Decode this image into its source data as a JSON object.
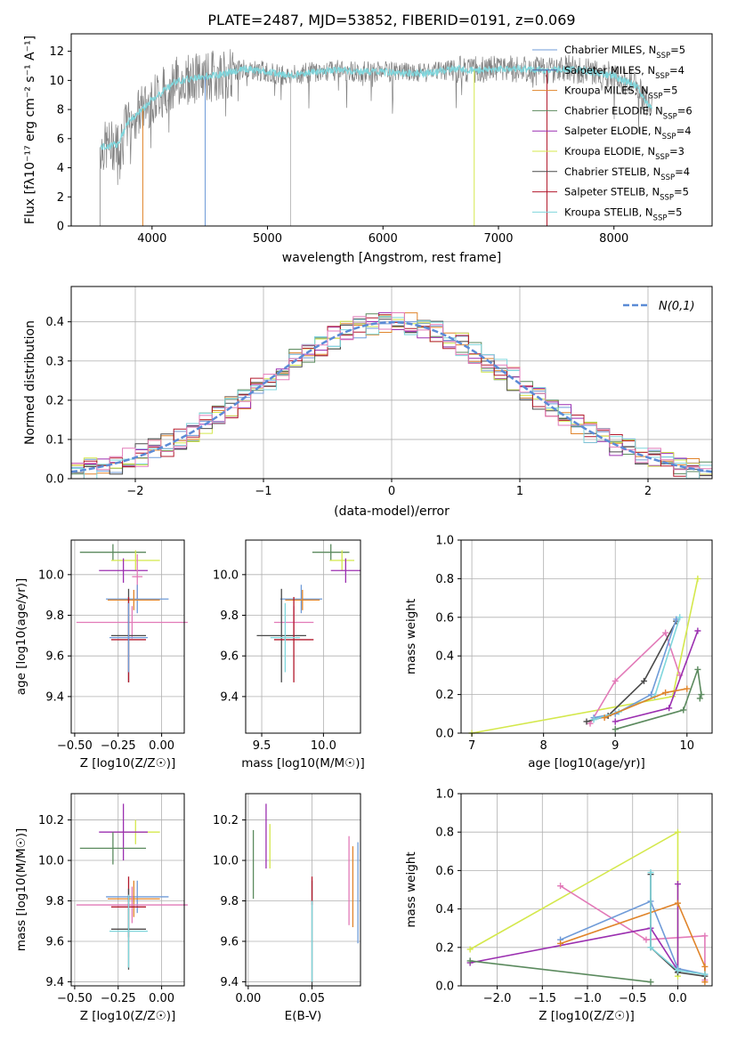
{
  "title": "PLATE=2487, MJD=53852, FIBERID=0191, z=0.069",
  "colors": {
    "chabrier_miles": "#6f9bd8",
    "salpeter_miles": "#4c5fa8",
    "kroupa_miles": "#e0842a",
    "chabrier_elodie": "#5b8a5e",
    "salpeter_elodie": "#9b2fb0",
    "kroupa_elodie": "#d4e84c",
    "chabrier_stelib": "#4a4a4a",
    "salpeter_stelib": "#b2182b",
    "kroupa_stelib": "#7fd6dc",
    "pink": "#e27ab8",
    "data_grey": "#808080",
    "normal_curve": "#5b8bd6"
  },
  "chart_data": [
    {
      "id": "spectrum",
      "type": "line",
      "xlabel": "wavelength [Angstrom, rest frame]",
      "ylabel": "Flux [fλ10⁻¹⁷ erg cm⁻² s⁻¹ A⁻¹]",
      "xlim": [
        3300,
        8850
      ],
      "ylim": [
        0,
        13.2
      ],
      "xticks": [
        4000,
        5000,
        6000,
        7000,
        8000
      ],
      "yticks": [
        0,
        2,
        4,
        6,
        8,
        10,
        12
      ],
      "legend_position": "top-right",
      "legend": [
        {
          "label": "Chabrier MILES, N",
          "sub": "SSP",
          "tail": "=5",
          "color": "#6f9bd8"
        },
        {
          "label": "Salpeter MILES, N",
          "sub": "SSP",
          "tail": "=4",
          "color": "#4c5fa8"
        },
        {
          "label": "Kroupa MILES, N",
          "sub": "SSP",
          "tail": "=5",
          "color": "#e0842a"
        },
        {
          "label": "Chabrier ELODIE, N",
          "sub": "SSP",
          "tail": "=6",
          "color": "#5b8a5e"
        },
        {
          "label": "Salpeter ELODIE, N",
          "sub": "SSP",
          "tail": "=4",
          "color": "#9b2fb0"
        },
        {
          "label": "Kroupa ELODIE, N",
          "sub": "SSP",
          "tail": "=3",
          "color": "#d4e84c"
        },
        {
          "label": "Chabrier STELIB, N",
          "sub": "SSP",
          "tail": "=4",
          "color": "#4a4a4a"
        },
        {
          "label": "Salpeter STELIB, N",
          "sub": "SSP",
          "tail": "=5",
          "color": "#b2182b"
        },
        {
          "label": "Kroupa STELIB, N",
          "sub": "SSP",
          "tail": "=5",
          "color": "#7fd6dc"
        }
      ],
      "continuum": [
        [
          3550,
          5.4
        ],
        [
          3700,
          5.6
        ],
        [
          3800,
          7.2
        ],
        [
          3900,
          7.9
        ],
        [
          4000,
          8.7
        ],
        [
          4200,
          9.9
        ],
        [
          4400,
          10.2
        ],
        [
          4600,
          10.4
        ],
        [
          4800,
          10.8
        ],
        [
          5000,
          10.6
        ],
        [
          5200,
          10.3
        ],
        [
          5400,
          10.6
        ],
        [
          5600,
          10.7
        ],
        [
          5800,
          10.6
        ],
        [
          6000,
          10.6
        ],
        [
          6200,
          10.5
        ],
        [
          6400,
          10.5
        ],
        [
          6600,
          10.8
        ],
        [
          6800,
          10.7
        ],
        [
          7000,
          10.8
        ],
        [
          7200,
          10.8
        ],
        [
          7400,
          10.7
        ],
        [
          7600,
          10.8
        ],
        [
          7800,
          10.6
        ],
        [
          8000,
          10.3
        ],
        [
          8200,
          9.6
        ],
        [
          8300,
          8.2
        ]
      ],
      "drops": [
        3550,
        3920,
        4460,
        5200,
        6790,
        7420
      ]
    },
    {
      "id": "residuals",
      "type": "histogram",
      "xlabel": "(data-model)/error",
      "ylabel": "Normed distribution",
      "xlim": [
        -2.5,
        2.5
      ],
      "ylim": [
        0,
        0.49
      ],
      "xticks": [
        -2,
        -1,
        0,
        1,
        2
      ],
      "xtick_labels": [
        "−2",
        "−1",
        "0",
        "1",
        "2"
      ],
      "yticks": [
        0.0,
        0.1,
        0.2,
        0.3,
        0.4
      ],
      "ytick_labels": [
        "0.0",
        "0.1",
        "0.2",
        "0.3",
        "0.4"
      ],
      "legend": "N(0,1)",
      "legend_position": "top-right",
      "bin_width": 0.1
    },
    {
      "id": "age-vs-Z",
      "type": "scatter",
      "xlabel": "Z [log10(Z/Z☉)]",
      "ylabel": "age  [log10(age/yr)]",
      "xlim": [
        -0.52,
        0.13
      ],
      "ylim": [
        9.22,
        10.17
      ],
      "xticks": [
        -0.5,
        -0.25,
        0.0
      ],
      "xtick_labels": [
        "−0.50",
        "−0.25",
        "0.00"
      ],
      "yticks": [
        9.4,
        9.6,
        9.8,
        10.0
      ],
      "points": [
        {
          "x": -0.28,
          "y": 10.11,
          "xerr": 0.19,
          "yerr": 0.04,
          "c": "#5b8a5e"
        },
        {
          "x": -0.15,
          "y": 10.07,
          "xerr": 0.14,
          "yerr": 0.05,
          "c": "#d4e84c"
        },
        {
          "x": -0.22,
          "y": 10.02,
          "xerr": 0.14,
          "yerr": 0.06,
          "c": "#9b2fb0"
        },
        {
          "x": -0.14,
          "y": 9.99,
          "xerr": 0.03,
          "yerr": 0.11,
          "c": "#e27ab8"
        },
        {
          "x": -0.14,
          "y": 9.88,
          "xerr": 0.18,
          "yerr": 0.07,
          "c": "#6f9bd8"
        },
        {
          "x": -0.16,
          "y": 9.875,
          "xerr": 0.15,
          "yerr": 0.05,
          "c": "#e0842a"
        },
        {
          "x": -0.17,
          "y": 9.765,
          "xerr": 0.32,
          "yerr": 0.08,
          "c": "#e27ab8"
        },
        {
          "x": -0.19,
          "y": 9.7,
          "xerr": 0.1,
          "yerr": 0.23,
          "c": "#4a4a4a"
        },
        {
          "x": -0.19,
          "y": 9.68,
          "xerr": 0.1,
          "yerr": 0.21,
          "c": "#b2182b"
        },
        {
          "x": -0.19,
          "y": 9.69,
          "xerr": 0.11,
          "yerr": 0.17,
          "c": "#6f9bd8"
        }
      ]
    },
    {
      "id": "age-vs-mass",
      "type": "scatter",
      "xlabel": "mass [log10(M/M☉)]",
      "ylabel": "",
      "xlim": [
        9.37,
        10.3
      ],
      "ylim": [
        9.22,
        10.17
      ],
      "xticks": [
        9.5,
        10.0
      ],
      "xtick_labels": [
        "9.5",
        "10.0"
      ],
      "yticks": [
        9.4,
        9.6,
        9.8,
        10.0
      ],
      "points": [
        {
          "x": 10.06,
          "y": 10.11,
          "xerr": 0.15,
          "yerr": 0.04,
          "c": "#5b8a5e"
        },
        {
          "x": 10.15,
          "y": 10.07,
          "xerr": 0.1,
          "yerr": 0.05,
          "c": "#d4e84c"
        },
        {
          "x": 10.18,
          "y": 10.02,
          "xerr": 0.12,
          "yerr": 0.06,
          "c": "#9b2fb0"
        },
        {
          "x": 9.82,
          "y": 9.88,
          "xerr": 0.17,
          "yerr": 0.07,
          "c": "#6f9bd8"
        },
        {
          "x": 9.83,
          "y": 9.875,
          "xerr": 0.14,
          "yerr": 0.05,
          "c": "#e0842a"
        },
        {
          "x": 9.76,
          "y": 9.765,
          "xerr": 0.16,
          "yerr": 0.08,
          "c": "#e27ab8"
        },
        {
          "x": 9.66,
          "y": 9.7,
          "xerr": 0.2,
          "yerr": 0.23,
          "c": "#4a4a4a"
        },
        {
          "x": 9.76,
          "y": 9.68,
          "xerr": 0.16,
          "yerr": 0.21,
          "c": "#b2182b"
        },
        {
          "x": 9.69,
          "y": 9.69,
          "xerr": 0.12,
          "yerr": 0.17,
          "c": "#7fd6dc"
        }
      ]
    },
    {
      "id": "weight-vs-age",
      "type": "line",
      "xlabel": "age  [log10(age/yr)]",
      "ylabel": "mass weight",
      "xlim": [
        6.85,
        10.35
      ],
      "ylim": [
        0,
        1.0
      ],
      "xticks": [
        7,
        8,
        9,
        10
      ],
      "yticks": [
        0.0,
        0.2,
        0.4,
        0.6,
        0.8,
        1.0
      ],
      "ytick_labels": [
        "0.0",
        "0.2",
        "0.4",
        "0.6",
        "0.8",
        "1.0"
      ],
      "series": [
        {
          "c": "#d4e84c",
          "x": [
            7.0,
            9.8,
            10.15
          ],
          "y": [
            0.0,
            0.19,
            0.8
          ]
        },
        {
          "c": "#e27ab8",
          "x": [
            8.65,
            9.0,
            9.7,
            9.9
          ],
          "y": [
            0.05,
            0.27,
            0.52,
            0.3
          ]
        },
        {
          "c": "#4a4a4a",
          "x": [
            8.6,
            8.9,
            9.4,
            9.85
          ],
          "y": [
            0.06,
            0.09,
            0.27,
            0.58
          ]
        },
        {
          "c": "#6f9bd8",
          "x": [
            8.7,
            9.0,
            9.5,
            9.85
          ],
          "y": [
            0.08,
            0.1,
            0.2,
            0.59
          ]
        },
        {
          "c": "#7fd6dc",
          "x": [
            8.7,
            9.05,
            9.55,
            9.9
          ],
          "y": [
            0.07,
            0.11,
            0.19,
            0.6
          ]
        },
        {
          "c": "#9b2fb0",
          "x": [
            9.0,
            9.75,
            10.15
          ],
          "y": [
            0.06,
            0.13,
            0.53
          ]
        },
        {
          "c": "#e0842a",
          "x": [
            8.85,
            9.7,
            10.0
          ],
          "y": [
            0.08,
            0.21,
            0.23
          ]
        },
        {
          "c": "#5b8a5e",
          "x": [
            9.0,
            9.95,
            10.15,
            10.2,
            10.18
          ],
          "y": [
            0.02,
            0.12,
            0.33,
            0.2,
            0.18
          ]
        }
      ]
    },
    {
      "id": "mass-vs-Z",
      "type": "scatter",
      "xlabel": "Z [log10(Z/Z☉)]",
      "ylabel": "mass [log10(M/M☉)]",
      "xlim": [
        -0.52,
        0.13
      ],
      "ylim": [
        9.38,
        10.33
      ],
      "xticks": [
        -0.5,
        -0.25,
        0.0
      ],
      "xtick_labels": [
        "−0.50",
        "−0.25",
        "0.00"
      ],
      "yticks": [
        9.4,
        9.6,
        9.8,
        10.0,
        10.2
      ],
      "points": [
        {
          "x": -0.15,
          "y": 10.14,
          "xerr": 0.14,
          "yerr": 0.06,
          "c": "#d4e84c"
        },
        {
          "x": -0.22,
          "y": 10.14,
          "xerr": 0.14,
          "yerr": 0.14,
          "c": "#9b2fb0"
        },
        {
          "x": -0.28,
          "y": 10.06,
          "xerr": 0.19,
          "yerr": 0.08,
          "c": "#5b8a5e"
        },
        {
          "x": -0.14,
          "y": 9.82,
          "xerr": 0.18,
          "yerr": 0.08,
          "c": "#6f9bd8"
        },
        {
          "x": -0.16,
          "y": 9.81,
          "xerr": 0.15,
          "yerr": 0.09,
          "c": "#e0842a"
        },
        {
          "x": -0.17,
          "y": 9.78,
          "xerr": 0.32,
          "yerr": 0.09,
          "c": "#e27ab8"
        },
        {
          "x": -0.19,
          "y": 9.77,
          "xerr": 0.1,
          "yerr": 0.15,
          "c": "#b2182b"
        },
        {
          "x": -0.19,
          "y": 9.66,
          "xerr": 0.1,
          "yerr": 0.2,
          "c": "#4a4a4a"
        },
        {
          "x": -0.19,
          "y": 9.65,
          "xerr": 0.11,
          "yerr": 0.18,
          "c": "#7fd6dc"
        }
      ]
    },
    {
      "id": "mass-vs-EBV",
      "type": "scatter",
      "xlabel": "E(B-V)",
      "ylabel": "",
      "xlim": [
        -0.002,
        0.088
      ],
      "ylim": [
        9.38,
        10.33
      ],
      "xticks": [
        0.0,
        0.05
      ],
      "xtick_labels": [
        "0.00",
        "0.05"
      ],
      "yticks": [
        9.4,
        9.6,
        9.8,
        10.0,
        10.2
      ],
      "points": [
        {
          "x": 0.004,
          "y": 9.98,
          "yerr": 0.17,
          "c": "#5b8a5e"
        },
        {
          "x": 0.014,
          "y": 10.12,
          "yerr": 0.16,
          "c": "#9b2fb0"
        },
        {
          "x": 0.017,
          "y": 10.07,
          "yerr": 0.11,
          "c": "#d4e84c"
        },
        {
          "x": 0.05,
          "y": 9.64,
          "yerr": 0.26,
          "c": "#4a4a4a"
        },
        {
          "x": 0.05,
          "y": 9.85,
          "yerr": 0.07,
          "c": "#b2182b"
        },
        {
          "x": 0.05,
          "y": 9.6,
          "yerr": 0.2,
          "c": "#7fd6dc"
        },
        {
          "x": 0.079,
          "y": 9.9,
          "yerr": 0.22,
          "c": "#e27ab8"
        },
        {
          "x": 0.082,
          "y": 9.87,
          "yerr": 0.2,
          "c": "#e0842a"
        },
        {
          "x": 0.086,
          "y": 9.84,
          "yerr": 0.25,
          "c": "#6f9bd8"
        }
      ]
    },
    {
      "id": "weight-vs-Z",
      "type": "line",
      "xlabel": "Z [log10(Z/Z☉)]",
      "ylabel": "mass weight",
      "xlim": [
        -2.4,
        0.38
      ],
      "ylim": [
        0,
        1.0
      ],
      "xticks": [
        -2.0,
        -1.5,
        -1.0,
        -0.5,
        0.0
      ],
      "xtick_labels": [
        "−2.0",
        "−1.5",
        "−1.0",
        "−0.5",
        "0.0"
      ],
      "yticks": [
        0.0,
        0.2,
        0.4,
        0.6,
        0.8,
        1.0
      ],
      "ytick_labels": [
        "0.0",
        "0.2",
        "0.4",
        "0.6",
        "0.8",
        "1.0"
      ],
      "series": [
        {
          "c": "#d4e84c",
          "x": [
            -2.3,
            0.0,
            0.0
          ],
          "y": [
            0.19,
            0.8,
            0.05
          ]
        },
        {
          "c": "#e27ab8",
          "x": [
            -1.3,
            -0.35,
            0.3,
            0.3
          ],
          "y": [
            0.52,
            0.24,
            0.26,
            0.03
          ]
        },
        {
          "c": "#9b2fb0",
          "x": [
            -2.3,
            -0.3,
            0.0,
            0.0
          ],
          "y": [
            0.12,
            0.3,
            0.08,
            0.53
          ]
        },
        {
          "c": "#6f9bd8",
          "x": [
            -1.3,
            -0.3,
            0.0,
            0.3
          ],
          "y": [
            0.24,
            0.44,
            0.09,
            0.06
          ]
        },
        {
          "c": "#e0842a",
          "x": [
            -1.3,
            0.0,
            0.3,
            0.3
          ],
          "y": [
            0.22,
            0.43,
            0.1,
            0.02
          ]
        },
        {
          "c": "#4a4a4a",
          "x": [
            -0.3,
            -0.3,
            0.0,
            0.3
          ],
          "y": [
            0.58,
            0.2,
            0.07,
            0.05
          ]
        },
        {
          "c": "#7fd6dc",
          "x": [
            -0.3,
            -0.3,
            0.0,
            0.3
          ],
          "y": [
            0.59,
            0.2,
            0.08,
            0.06
          ]
        },
        {
          "c": "#5b8a5e",
          "x": [
            -2.3,
            -0.3
          ],
          "y": [
            0.13,
            0.02
          ]
        }
      ]
    }
  ]
}
